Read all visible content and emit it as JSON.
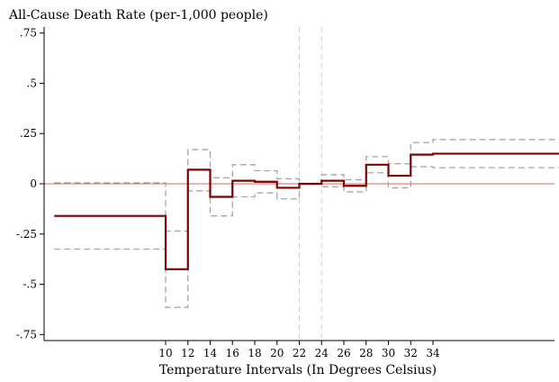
{
  "chart_data": {
    "type": "line",
    "title": "",
    "ylabel": "All-Cause Death Rate (per-1,000 people)",
    "xlabel": "Temperature Intervals (In Degrees Celsius)",
    "xlim": [
      -0.5,
      46
    ],
    "ylim": [
      -0.78,
      0.78
    ],
    "x_ticks": [
      10,
      12,
      14,
      16,
      18,
      20,
      22,
      24,
      26,
      28,
      30,
      32,
      34
    ],
    "y_ticks": [
      {
        "value": 0.75,
        "label": ".75"
      },
      {
        "value": 0.5,
        "label": ".5"
      },
      {
        "value": 0.25,
        "label": ".25"
      },
      {
        "value": 0,
        "label": "0"
      },
      {
        "value": -0.25,
        "label": "-.25"
      },
      {
        "value": -0.5,
        "label": "-.5"
      },
      {
        "value": -0.75,
        "label": "-.75"
      }
    ],
    "reference_line": {
      "y": 0,
      "color": "#e0605a"
    },
    "vertical_lines": {
      "x": [
        22,
        24
      ],
      "color": "#d3d3d3"
    },
    "series": [
      {
        "role": "estimate",
        "style": "solid",
        "color": "#800000",
        "points": [
          {
            "x0": 0,
            "x1": 10,
            "y": -0.16
          },
          {
            "x0": 10,
            "x1": 12,
            "y": -0.425
          },
          {
            "x0": 12,
            "x1": 14,
            "y": 0.07
          },
          {
            "x0": 14,
            "x1": 16,
            "y": -0.065
          },
          {
            "x0": 16,
            "x1": 18,
            "y": 0.015
          },
          {
            "x0": 18,
            "x1": 20,
            "y": 0.01
          },
          {
            "x0": 20,
            "x1": 22,
            "y": -0.02
          },
          {
            "x0": 22,
            "x1": 24,
            "y": 0
          },
          {
            "x0": 24,
            "x1": 26,
            "y": 0.015
          },
          {
            "x0": 26,
            "x1": 28,
            "y": -0.01
          },
          {
            "x0": 28,
            "x1": 30,
            "y": 0.095
          },
          {
            "x0": 30,
            "x1": 32,
            "y": 0.04
          },
          {
            "x0": 32,
            "x1": 34,
            "y": 0.145
          },
          {
            "x0": 34,
            "x1": 46,
            "y": 0.15
          }
        ]
      },
      {
        "role": "upper-ci",
        "style": "dashed",
        "color": "#a6a6a6",
        "points": [
          {
            "x0": 0,
            "x1": 10,
            "y": 0.005
          },
          {
            "x0": 10,
            "x1": 12,
            "y": -0.235
          },
          {
            "x0": 12,
            "x1": 14,
            "y": 0.17
          },
          {
            "x0": 14,
            "x1": 16,
            "y": 0.03
          },
          {
            "x0": 16,
            "x1": 18,
            "y": 0.095
          },
          {
            "x0": 18,
            "x1": 20,
            "y": 0.065
          },
          {
            "x0": 20,
            "x1": 22,
            "y": 0.025
          },
          {
            "x0": 22,
            "x1": 24,
            "y": 0
          },
          {
            "x0": 24,
            "x1": 26,
            "y": 0.045
          },
          {
            "x0": 26,
            "x1": 28,
            "y": 0.02
          },
          {
            "x0": 28,
            "x1": 30,
            "y": 0.135
          },
          {
            "x0": 30,
            "x1": 32,
            "y": 0.1
          },
          {
            "x0": 32,
            "x1": 34,
            "y": 0.205
          },
          {
            "x0": 34,
            "x1": 46,
            "y": 0.22
          }
        ]
      },
      {
        "role": "lower-ci",
        "style": "dashed",
        "color": "#a6a6a6",
        "points": [
          {
            "x0": 0,
            "x1": 10,
            "y": -0.325
          },
          {
            "x0": 10,
            "x1": 12,
            "y": -0.615
          },
          {
            "x0": 12,
            "x1": 14,
            "y": -0.035
          },
          {
            "x0": 14,
            "x1": 16,
            "y": -0.16
          },
          {
            "x0": 16,
            "x1": 18,
            "y": -0.065
          },
          {
            "x0": 18,
            "x1": 20,
            "y": -0.045
          },
          {
            "x0": 20,
            "x1": 22,
            "y": -0.075
          },
          {
            "x0": 22,
            "x1": 24,
            "y": 0
          },
          {
            "x0": 24,
            "x1": 26,
            "y": -0.015
          },
          {
            "x0": 26,
            "x1": 28,
            "y": -0.04
          },
          {
            "x0": 28,
            "x1": 30,
            "y": 0.055
          },
          {
            "x0": 30,
            "x1": 32,
            "y": -0.02
          },
          {
            "x0": 32,
            "x1": 34,
            "y": 0.085
          },
          {
            "x0": 34,
            "x1": 46,
            "y": 0.08
          }
        ]
      }
    ]
  }
}
